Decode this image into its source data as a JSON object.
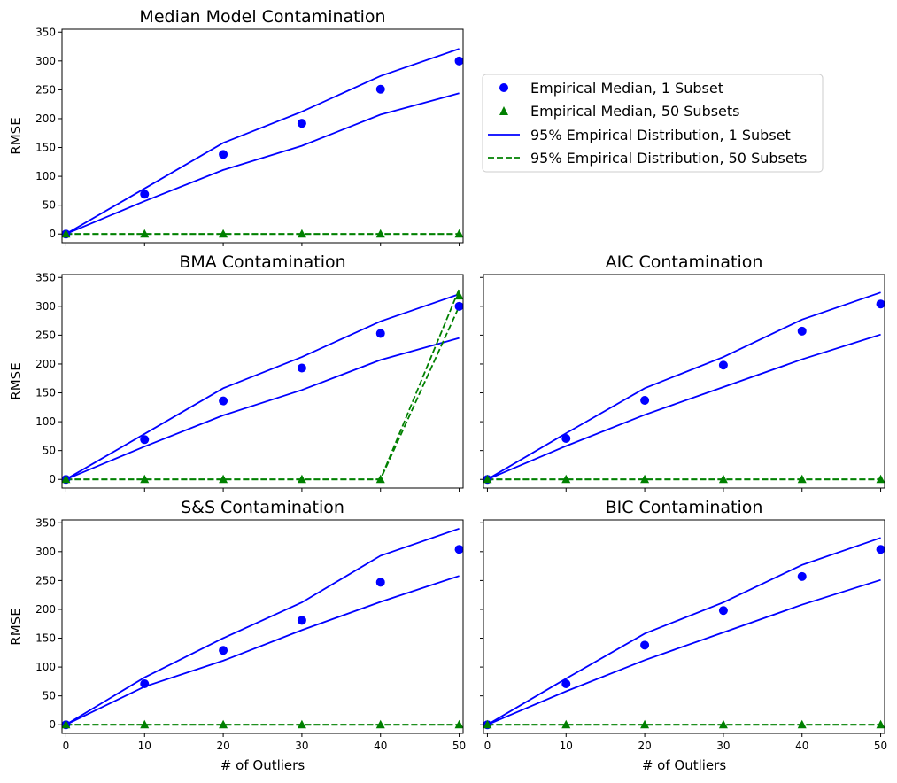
{
  "chart_data": [
    {
      "panel": "median",
      "type": "line",
      "title": "Median Model Contamination",
      "xlabel": "",
      "ylabel": "RMSE",
      "x": [
        0,
        10,
        20,
        30,
        40,
        50
      ],
      "xlim": [
        -0.5,
        50.5
      ],
      "ylim": [
        -15,
        355
      ],
      "yticks": [
        0,
        50,
        100,
        150,
        200,
        250,
        300,
        350
      ],
      "xticks": [
        0,
        10,
        20,
        30,
        40,
        50
      ],
      "show_xtick_labels": false,
      "show_ytick_labels": true,
      "series": [
        {
          "name": "Empirical Median, 1 Subset",
          "kind": "point",
          "values": [
            0,
            69,
            138,
            192,
            251,
            300
          ]
        },
        {
          "name": "Empirical Median, 50 Subsets",
          "kind": "triangle",
          "values": [
            0,
            0,
            0,
            0,
            0,
            0
          ]
        },
        {
          "name": "95% Empirical Distribution, 1 Subset",
          "kind": "solid",
          "values": [
            0,
            79,
            158,
            212,
            274,
            321
          ]
        },
        {
          "name": "95% Empirical Distribution, 1 Subset",
          "kind": "solid",
          "values": [
            0,
            57,
            111,
            153,
            207,
            244
          ]
        },
        {
          "name": "95% Empirical Distribution, 50 Subsets",
          "kind": "dashed",
          "values": [
            0,
            0,
            0,
            0,
            0,
            0
          ]
        },
        {
          "name": "95% Empirical Distribution, 50 Subsets",
          "kind": "dashed",
          "values": [
            0,
            0,
            0,
            0,
            0,
            0
          ]
        }
      ]
    },
    {
      "panel": "bma",
      "type": "line",
      "title": "BMA Contamination",
      "xlabel": "",
      "ylabel": "RMSE",
      "x": [
        0,
        10,
        20,
        30,
        40,
        50
      ],
      "xlim": [
        -0.5,
        50.5
      ],
      "ylim": [
        -15,
        355
      ],
      "yticks": [
        0,
        50,
        100,
        150,
        200,
        250,
        300,
        350
      ],
      "xticks": [
        0,
        10,
        20,
        30,
        40,
        50
      ],
      "show_xtick_labels": false,
      "show_ytick_labels": true,
      "series": [
        {
          "name": "Empirical Median, 1 Subset",
          "kind": "point",
          "values": [
            0,
            69,
            136,
            193,
            253,
            300
          ]
        },
        {
          "name": "Empirical Median, 50 Subsets",
          "kind": "triangle",
          "values": [
            0,
            0,
            0,
            0,
            0,
            318
          ]
        },
        {
          "name": "95% Empirical Distribution, 1 Subset",
          "kind": "solid",
          "values": [
            0,
            79,
            158,
            212,
            274,
            321
          ]
        },
        {
          "name": "95% Empirical Distribution, 1 Subset",
          "kind": "solid",
          "values": [
            0,
            57,
            111,
            155,
            207,
            245
          ]
        },
        {
          "name": "95% Empirical Distribution, 50 Subsets",
          "kind": "dashed",
          "values": [
            0,
            0,
            0,
            0,
            0,
            330
          ]
        },
        {
          "name": "95% Empirical Distribution, 50 Subsets",
          "kind": "dashed",
          "values": [
            0,
            0,
            0,
            0,
            0,
            300
          ]
        }
      ]
    },
    {
      "panel": "aic",
      "type": "line",
      "title": "AIC Contamination",
      "xlabel": "",
      "ylabel": "",
      "x": [
        0,
        10,
        20,
        30,
        40,
        50
      ],
      "xlim": [
        -0.5,
        50.5
      ],
      "ylim": [
        -15,
        355
      ],
      "yticks": [
        0,
        50,
        100,
        150,
        200,
        250,
        300,
        350
      ],
      "xticks": [
        0,
        10,
        20,
        30,
        40,
        50
      ],
      "show_xtick_labels": false,
      "show_ytick_labels": false,
      "series": [
        {
          "name": "Empirical Median, 1 Subset",
          "kind": "point",
          "values": [
            0,
            71,
            137,
            198,
            257,
            304
          ]
        },
        {
          "name": "Empirical Median, 50 Subsets",
          "kind": "triangle",
          "values": [
            0,
            0,
            0,
            0,
            0,
            0
          ]
        },
        {
          "name": "95% Empirical Distribution, 1 Subset",
          "kind": "solid",
          "values": [
            0,
            80,
            158,
            212,
            277,
            324
          ]
        },
        {
          "name": "95% Empirical Distribution, 1 Subset",
          "kind": "solid",
          "values": [
            0,
            58,
            112,
            160,
            208,
            251
          ]
        },
        {
          "name": "95% Empirical Distribution, 50 Subsets",
          "kind": "dashed",
          "values": [
            0,
            0,
            0,
            0,
            0,
            0
          ]
        },
        {
          "name": "95% Empirical Distribution, 50 Subsets",
          "kind": "dashed",
          "values": [
            0,
            0,
            0,
            0,
            0,
            0
          ]
        }
      ]
    },
    {
      "panel": "ss",
      "type": "line",
      "title": "S&S Contamination",
      "xlabel": "# of Outliers",
      "ylabel": "RMSE",
      "x": [
        0,
        10,
        20,
        30,
        40,
        50
      ],
      "xlim": [
        -0.5,
        50.5
      ],
      "ylim": [
        -15,
        355
      ],
      "yticks": [
        0,
        50,
        100,
        150,
        200,
        250,
        300,
        350
      ],
      "xticks": [
        0,
        10,
        20,
        30,
        40,
        50
      ],
      "show_xtick_labels": true,
      "show_ytick_labels": true,
      "series": [
        {
          "name": "Empirical Median, 1 Subset",
          "kind": "point",
          "values": [
            0,
            71,
            129,
            181,
            247,
            304
          ]
        },
        {
          "name": "Empirical Median, 50 Subsets",
          "kind": "triangle",
          "values": [
            0,
            0,
            0,
            0,
            0,
            0
          ]
        },
        {
          "name": "95% Empirical Distribution, 1 Subset",
          "kind": "solid",
          "values": [
            0,
            82,
            150,
            212,
            293,
            340
          ]
        },
        {
          "name": "95% Empirical Distribution, 1 Subset",
          "kind": "solid",
          "values": [
            0,
            66,
            111,
            164,
            213,
            258
          ]
        },
        {
          "name": "95% Empirical Distribution, 50 Subsets",
          "kind": "dashed",
          "values": [
            0,
            0,
            0,
            0,
            0,
            0
          ]
        },
        {
          "name": "95% Empirical Distribution, 50 Subsets",
          "kind": "dashed",
          "values": [
            0,
            0,
            0,
            0,
            0,
            0
          ]
        }
      ]
    },
    {
      "panel": "bic",
      "type": "line",
      "title": "BIC Contamination",
      "xlabel": "# of Outliers",
      "ylabel": "",
      "x": [
        0,
        10,
        20,
        30,
        40,
        50
      ],
      "xlim": [
        -0.5,
        50.5
      ],
      "ylim": [
        -15,
        355
      ],
      "yticks": [
        0,
        50,
        100,
        150,
        200,
        250,
        300,
        350
      ],
      "xticks": [
        0,
        10,
        20,
        30,
        40,
        50
      ],
      "show_xtick_labels": true,
      "show_ytick_labels": false,
      "series": [
        {
          "name": "Empirical Median, 1 Subset",
          "kind": "point",
          "values": [
            0,
            71,
            138,
            198,
            257,
            304
          ]
        },
        {
          "name": "Empirical Median, 50 Subsets",
          "kind": "triangle",
          "values": [
            0,
            0,
            0,
            0,
            0,
            0
          ]
        },
        {
          "name": "95% Empirical Distribution, 1 Subset",
          "kind": "solid",
          "values": [
            0,
            80,
            158,
            212,
            277,
            324
          ]
        },
        {
          "name": "95% Empirical Distribution, 1 Subset",
          "kind": "solid",
          "values": [
            0,
            58,
            112,
            160,
            208,
            251
          ]
        },
        {
          "name": "95% Empirical Distribution, 50 Subsets",
          "kind": "dashed",
          "values": [
            0,
            0,
            0,
            0,
            0,
            0
          ]
        },
        {
          "name": "95% Empirical Distribution, 50 Subsets",
          "kind": "dashed",
          "values": [
            0,
            0,
            0,
            0,
            0,
            0
          ]
        }
      ]
    }
  ],
  "legend": {
    "placement": "upper right of figure",
    "items": [
      {
        "label": "Empirical Median, 1 Subset",
        "kind": "point",
        "color": "#0000ff"
      },
      {
        "label": "Empirical Median, 50 Subsets",
        "kind": "triangle",
        "color": "#008000"
      },
      {
        "label": "95% Empirical Distribution, 1 Subset",
        "kind": "solid",
        "color": "#0000ff"
      },
      {
        "label": "95% Empirical Distribution, 50 Subsets",
        "kind": "dashed",
        "color": "#008000"
      }
    ]
  },
  "colors": {
    "one_subset": "#0000ff",
    "fifty_subsets": "#008000"
  }
}
